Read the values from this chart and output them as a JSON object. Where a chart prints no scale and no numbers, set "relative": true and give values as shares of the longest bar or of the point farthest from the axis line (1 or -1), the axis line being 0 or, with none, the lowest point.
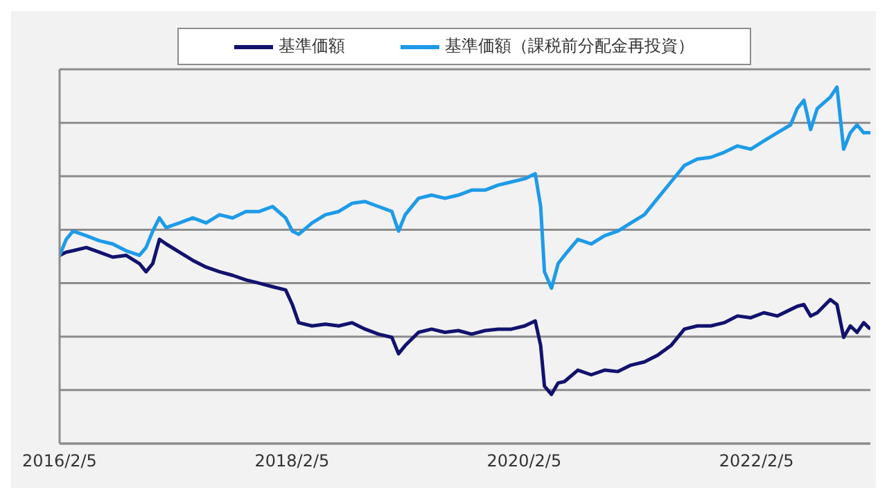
{
  "chart_data": {
    "type": "line",
    "relative": true,
    "grid": "y",
    "legend": "top",
    "line_style": "solid",
    "marker": "none",
    "x": [
      "2016-02-05",
      "2016-02-26",
      "2016-03-18",
      "2016-04-29",
      "2016-06-09",
      "2016-07-21",
      "2016-09-01",
      "2016-10-13",
      "2016-11-03",
      "2016-11-24",
      "2016-12-15",
      "2017-01-05",
      "2017-02-16",
      "2017-03-30",
      "2017-05-11",
      "2017-06-22",
      "2017-08-02",
      "2017-09-13",
      "2017-10-25",
      "2017-12-06",
      "2018-01-16",
      "2018-02-06",
      "2018-02-26",
      "2018-04-09",
      "2018-05-21",
      "2018-07-02",
      "2018-08-13",
      "2018-09-23",
      "2018-11-04",
      "2018-12-16",
      "2019-01-06",
      "2019-01-27",
      "2019-03-10",
      "2019-04-20",
      "2019-06-01",
      "2019-07-13",
      "2019-08-24",
      "2019-10-05",
      "2019-11-15",
      "2019-12-27",
      "2020-02-07",
      "2020-03-11",
      "2020-03-28",
      "2020-04-09",
      "2020-05-01",
      "2020-05-22",
      "2020-06-11",
      "2020-07-23",
      "2020-09-03",
      "2020-10-15",
      "2020-11-26",
      "2021-01-06",
      "2021-02-17",
      "2021-03-31",
      "2021-05-12",
      "2021-06-23",
      "2021-08-03",
      "2021-09-14",
      "2021-10-26",
      "2021-12-07",
      "2022-01-18",
      "2022-02-28",
      "2022-04-11",
      "2022-05-23",
      "2022-06-13",
      "2022-07-04",
      "2022-07-25",
      "2022-08-15",
      "2022-09-25",
      "2022-10-16",
      "2022-11-06",
      "2022-11-27",
      "2022-12-18",
      "2023-01-08",
      "2023-01-29"
    ],
    "xlim": [
      "2016-02-05",
      "2023-01-29"
    ],
    "xticks": [
      {
        "value": "2016-02-05",
        "label": "2016/2/5"
      },
      {
        "value": "2018-02-05",
        "label": "2018/2/5"
      },
      {
        "value": "2020-02-05",
        "label": "2020/2/5"
      },
      {
        "value": "2022-02-05",
        "label": "2022/2/5"
      }
    ],
    "series": [
      {
        "name": "基準価額",
        "color": "#12126e",
        "values": [
          0.528,
          0.537,
          0.541,
          0.55,
          0.537,
          0.523,
          0.528,
          0.505,
          0.482,
          0.505,
          0.573,
          0.56,
          0.537,
          0.514,
          0.495,
          0.482,
          0.472,
          0.459,
          0.45,
          0.44,
          0.431,
          0.39,
          0.339,
          0.33,
          0.335,
          0.33,
          0.339,
          0.321,
          0.307,
          0.298,
          0.252,
          0.275,
          0.312,
          0.321,
          0.312,
          0.317,
          0.307,
          0.317,
          0.321,
          0.321,
          0.33,
          0.344,
          0.275,
          0.161,
          0.138,
          0.17,
          0.174,
          0.206,
          0.193,
          0.206,
          0.202,
          0.22,
          0.229,
          0.248,
          0.275,
          0.321,
          0.33,
          0.33,
          0.339,
          0.358,
          0.353,
          0.367,
          0.358,
          0.376,
          0.385,
          0.39,
          0.358,
          0.367,
          0.404,
          0.39,
          0.298,
          0.33,
          0.312,
          0.339,
          0.321
        ]
      },
      {
        "name": "基準価額（課税前分配金再投資）",
        "color": "#1e9be8",
        "values": [
          0.528,
          0.573,
          0.596,
          0.583,
          0.569,
          0.56,
          0.541,
          0.528,
          0.55,
          0.596,
          0.633,
          0.606,
          0.619,
          0.633,
          0.619,
          0.642,
          0.633,
          0.651,
          0.651,
          0.665,
          0.633,
          0.596,
          0.587,
          0.619,
          0.642,
          0.651,
          0.674,
          0.679,
          0.665,
          0.651,
          0.596,
          0.642,
          0.688,
          0.697,
          0.688,
          0.697,
          0.711,
          0.711,
          0.725,
          0.734,
          0.743,
          0.757,
          0.665,
          0.482,
          0.436,
          0.505,
          0.528,
          0.573,
          0.56,
          0.583,
          0.596,
          0.619,
          0.642,
          0.688,
          0.734,
          0.78,
          0.798,
          0.803,
          0.817,
          0.835,
          0.826,
          0.849,
          0.872,
          0.894,
          0.94,
          0.963,
          0.881,
          0.94,
          0.972,
          1,
          0.826,
          0.872,
          0.894,
          0.872,
          0.872
        ]
      }
    ]
  }
}
